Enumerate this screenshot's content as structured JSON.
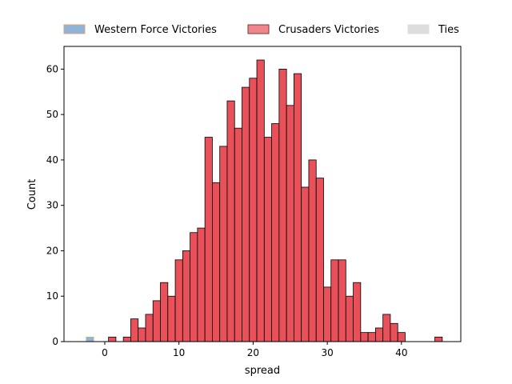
{
  "chart_data": {
    "type": "histogram",
    "xlabel": "spread",
    "ylabel": "Count",
    "xlim": [
      -5.5,
      48
    ],
    "ylim": [
      0,
      65
    ],
    "xticks": [
      0,
      10,
      20,
      30,
      40
    ],
    "yticks": [
      0,
      10,
      20,
      30,
      40,
      50,
      60
    ],
    "legend_position": "top, outside plot",
    "bin_width": 1,
    "series": [
      {
        "name": "Western Force Victories",
        "color": "#8fb3d9",
        "edge": "#d7a77a",
        "bins": [
          {
            "start": -2.5,
            "count": 1
          }
        ]
      },
      {
        "name": "Crusaders Victories",
        "color": "#e8515a",
        "edge": "#000000",
        "bins": [
          {
            "start": 0.5,
            "count": 1
          },
          {
            "start": 2.5,
            "count": 1
          },
          {
            "start": 3.5,
            "count": 5
          },
          {
            "start": 4.5,
            "count": 3
          },
          {
            "start": 5.5,
            "count": 6
          },
          {
            "start": 6.5,
            "count": 9
          },
          {
            "start": 7.5,
            "count": 13
          },
          {
            "start": 8.5,
            "count": 10
          },
          {
            "start": 9.5,
            "count": 18
          },
          {
            "start": 10.5,
            "count": 20
          },
          {
            "start": 11.5,
            "count": 24
          },
          {
            "start": 12.5,
            "count": 25
          },
          {
            "start": 13.5,
            "count": 45
          },
          {
            "start": 14.5,
            "count": 35
          },
          {
            "start": 15.5,
            "count": 43
          },
          {
            "start": 16.5,
            "count": 53
          },
          {
            "start": 17.5,
            "count": 47
          },
          {
            "start": 18.5,
            "count": 56
          },
          {
            "start": 19.5,
            "count": 58
          },
          {
            "start": 20.5,
            "count": 62
          },
          {
            "start": 21.5,
            "count": 45
          },
          {
            "start": 22.5,
            "count": 48
          },
          {
            "start": 23.5,
            "count": 60
          },
          {
            "start": 24.5,
            "count": 52
          },
          {
            "start": 25.5,
            "count": 59
          },
          {
            "start": 26.5,
            "count": 34
          },
          {
            "start": 27.5,
            "count": 40
          },
          {
            "start": 28.5,
            "count": 36
          },
          {
            "start": 29.5,
            "count": 12
          },
          {
            "start": 30.5,
            "count": 18
          },
          {
            "start": 31.5,
            "count": 18
          },
          {
            "start": 32.5,
            "count": 10
          },
          {
            "start": 33.5,
            "count": 13
          },
          {
            "start": 34.5,
            "count": 2
          },
          {
            "start": 35.5,
            "count": 2
          },
          {
            "start": 36.5,
            "count": 3
          },
          {
            "start": 37.5,
            "count": 6
          },
          {
            "start": 38.5,
            "count": 4
          },
          {
            "start": 39.5,
            "count": 2
          },
          {
            "start": 44.5,
            "count": 1
          }
        ]
      },
      {
        "name": "Ties",
        "color": "#dddddd",
        "edge": "#dddddd",
        "bins": []
      }
    ]
  }
}
